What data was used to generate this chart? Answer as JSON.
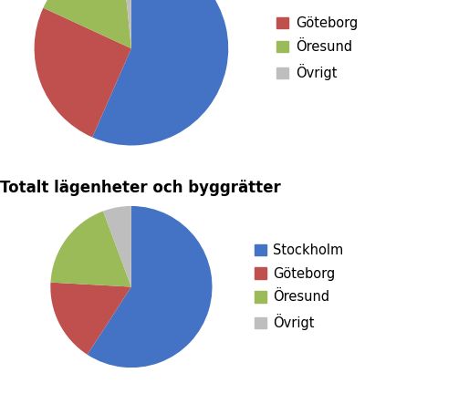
{
  "title2": "Totalt lägenheter och byggrätter",
  "pie1": {
    "values": [
      1096,
      490,
      320,
      31
    ],
    "colors": [
      "#4472C4",
      "#C0504D",
      "#9BBB59",
      "#BEBEBE"
    ],
    "legend_labels": [
      "Göteborg",
      "Öresund",
      "Övrigt"
    ],
    "legend_colors": [
      "#C0504D",
      "#9BBB59",
      "#BEBEBE"
    ],
    "startangle": 90,
    "counterclock": false
  },
  "pie2": {
    "values": [
      1700,
      480,
      530,
      163
    ],
    "colors": [
      "#4472C4",
      "#C0504D",
      "#9BBB59",
      "#BEBEBE"
    ],
    "legend_labels": [
      "Stockholm",
      "Göteborg",
      "Öresund",
      "Övrigt"
    ],
    "legend_colors": [
      "#4472C4",
      "#C0504D",
      "#9BBB59",
      "#BEBEBE"
    ],
    "startangle": 90,
    "counterclock": false
  },
  "bg_color": "#FFFFFF",
  "title_fontsize": 12,
  "legend_fontsize": 10.5
}
